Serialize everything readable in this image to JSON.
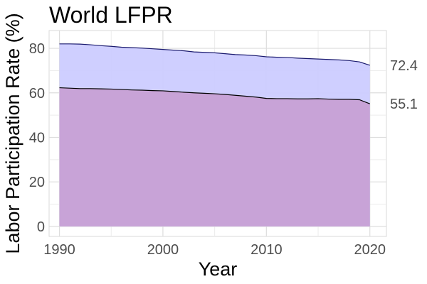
{
  "chart_data": {
    "type": "area",
    "title": "World LFPR",
    "xlabel": "Year",
    "ylabel": "Labor Participation Rate (%)",
    "xlim": [
      1989,
      2021.6
    ],
    "ylim": [
      -4.5,
      88
    ],
    "x_ticks": [
      1990,
      2000,
      2010,
      2020
    ],
    "y_ticks": [
      0,
      20,
      40,
      60,
      80
    ],
    "grid": true,
    "legend": "none",
    "x": [
      1990,
      1991,
      1992,
      1993,
      1994,
      1995,
      1996,
      1997,
      1998,
      1999,
      2000,
      2001,
      2002,
      2003,
      2004,
      2005,
      2006,
      2007,
      2008,
      2009,
      2010,
      2011,
      2012,
      2013,
      2014,
      2015,
      2016,
      2017,
      2018,
      2019,
      2020
    ],
    "series": [
      {
        "values": [
          82.0,
          82.0,
          81.9,
          81.6,
          81.2,
          80.9,
          80.5,
          80.3,
          80.1,
          79.8,
          79.5,
          79.2,
          78.9,
          78.4,
          78.2,
          78.0,
          77.6,
          77.2,
          77.0,
          76.7,
          76.2,
          76.0,
          75.9,
          75.6,
          75.4,
          75.2,
          75.0,
          74.8,
          74.5,
          73.9,
          72.4
        ],
        "color": "#ccccff",
        "line_color": "#1a1a6e",
        "end_label": "72.4"
      },
      {
        "values": [
          62.3,
          62.1,
          61.9,
          61.9,
          61.8,
          61.7,
          61.5,
          61.3,
          61.2,
          61.0,
          60.9,
          60.6,
          60.3,
          60.0,
          59.8,
          59.6,
          59.3,
          58.9,
          58.5,
          58.1,
          57.5,
          57.4,
          57.4,
          57.3,
          57.3,
          57.4,
          57.2,
          57.1,
          57.1,
          56.9,
          55.1
        ],
        "color": "#c8a0d4",
        "line_color": "#000000",
        "end_label": "55.1"
      }
    ]
  }
}
